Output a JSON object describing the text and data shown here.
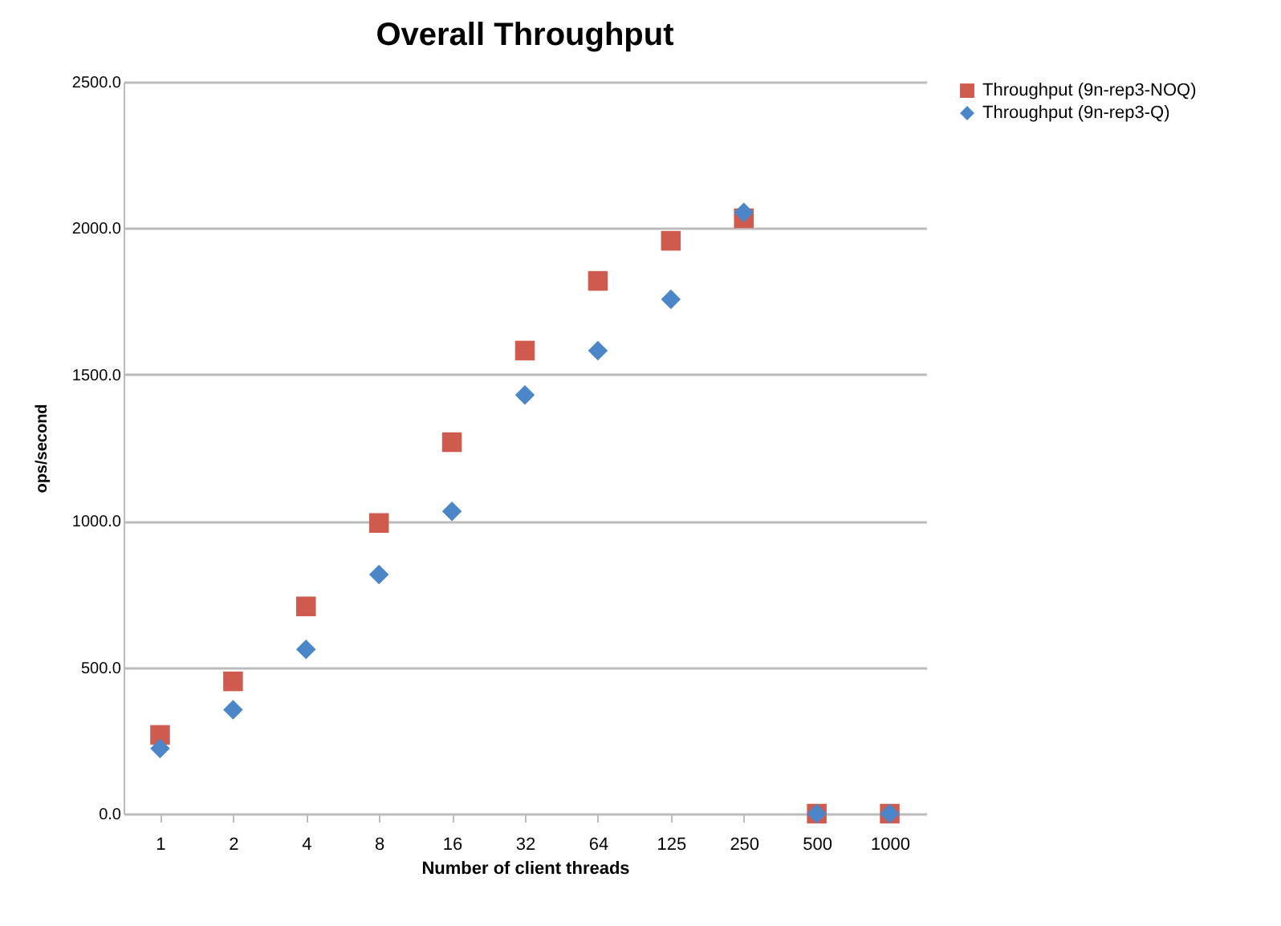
{
  "chart_data": {
    "type": "scatter",
    "title": "Overall Throughput",
    "xlabel": "Number of client threads",
    "ylabel": "ops/second",
    "categories": [
      "1",
      "2",
      "4",
      "8",
      "16",
      "32",
      "64",
      "125",
      "250",
      "500",
      "1000"
    ],
    "ylim": [
      0,
      2500
    ],
    "yticks": [
      {
        "value": 0,
        "label": "0.0"
      },
      {
        "value": 500,
        "label": "500.0"
      },
      {
        "value": 1000,
        "label": "1000.0"
      },
      {
        "value": 1500,
        "label": "1500.0"
      },
      {
        "value": 2000,
        "label": "2000.0"
      },
      {
        "value": 2500,
        "label": "2500.0"
      }
    ],
    "grid": "y",
    "legend": "right",
    "series": [
      {
        "name": "Throughput (9n-rep3-NOQ)",
        "color": "#cf5b4f",
        "marker": "square",
        "values": [
          269,
          452,
          708,
          993,
          1269,
          1582,
          1820,
          1957,
          2034,
          0,
          0
        ]
      },
      {
        "name": "Throughput (9n-rep3-Q)",
        "color": "#4a86c8",
        "marker": "diamond",
        "values": [
          223,
          355,
          561,
          817,
          1033,
          1430,
          1582,
          1757,
          2054,
          0,
          0
        ]
      }
    ]
  }
}
